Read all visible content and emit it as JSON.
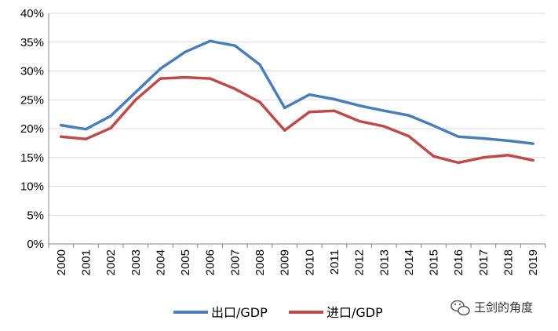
{
  "chart_data": {
    "type": "line",
    "x": [
      "2000",
      "2001",
      "2002",
      "2003",
      "2004",
      "2005",
      "2006",
      "2007",
      "2008",
      "2009",
      "2010",
      "2011",
      "2012",
      "2013",
      "2014",
      "2015",
      "2016",
      "2017",
      "2018",
      "2019"
    ],
    "series": [
      {
        "name": "出口/GDP",
        "color": "#4a7ebb",
        "values": [
          20.6,
          19.9,
          22.2,
          26.3,
          30.4,
          33.3,
          35.2,
          34.4,
          31.1,
          23.6,
          25.9,
          25.1,
          24.0,
          23.1,
          22.3,
          20.5,
          18.6,
          18.3,
          17.9,
          17.4
        ]
      },
      {
        "name": "进口/GDP",
        "color": "#be4b48",
        "values": [
          18.6,
          18.2,
          20.1,
          25.0,
          28.7,
          28.9,
          28.7,
          26.9,
          24.6,
          19.7,
          22.9,
          23.1,
          21.3,
          20.4,
          18.7,
          15.2,
          14.1,
          15.0,
          15.4,
          14.5
        ]
      }
    ],
    "yticks": [
      "0%",
      "5%",
      "10%",
      "15%",
      "20%",
      "25%",
      "30%",
      "35%",
      "40%"
    ],
    "ylim": [
      0,
      40
    ],
    "grid": true,
    "legend_position": "bottom"
  },
  "watermark": {
    "text": "王剑的角度",
    "icon": "wechat-icon"
  }
}
